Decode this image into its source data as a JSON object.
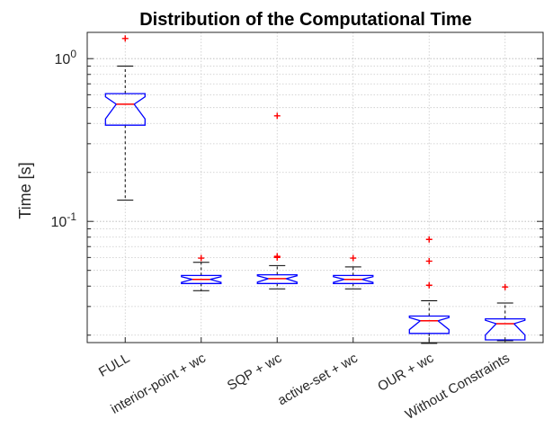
{
  "chart_data": {
    "type": "box",
    "title": "Distribution of the Computational Time",
    "xlabel": "",
    "ylabel": "Time [s]",
    "yscale": "log",
    "ylim": [
      0.018,
      1.45
    ],
    "ytick_labels": [
      "10^{-1}",
      "10^{0}"
    ],
    "grid": true,
    "notched": true,
    "box_color": "#0000ff",
    "median_color": "#ff0000",
    "outlier_color": "#ff0000",
    "whisker_color": "#000000",
    "categories": [
      "FULL",
      "interior-point + wc",
      "SQP + wc",
      "active-set + wc",
      "OUR + wc",
      "Without Constraints"
    ],
    "boxes": [
      {
        "label": "FULL",
        "whislo": 0.135,
        "q1": 0.39,
        "med": 0.525,
        "q3": 0.61,
        "whishi": 0.9,
        "fliers": [
          1.33
        ]
      },
      {
        "label": "interior-point + wc",
        "whislo": 0.0375,
        "q1": 0.0415,
        "med": 0.044,
        "q3": 0.0465,
        "whishi": 0.056,
        "fliers": [
          0.0595
        ]
      },
      {
        "label": "SQP + wc",
        "whislo": 0.0385,
        "q1": 0.0415,
        "med": 0.0445,
        "q3": 0.047,
        "whishi": 0.0535,
        "fliers": [
          0.445,
          0.061,
          0.0605,
          0.06
        ]
      },
      {
        "label": "active-set + wc",
        "whislo": 0.0385,
        "q1": 0.0415,
        "med": 0.044,
        "q3": 0.0465,
        "whishi": 0.0525,
        "fliers": [
          0.0595
        ]
      },
      {
        "label": "OUR + wc",
        "whislo": 0.0178,
        "q1": 0.0205,
        "med": 0.0245,
        "q3": 0.0262,
        "whishi": 0.0325,
        "fliers": [
          0.0775,
          0.057,
          0.0405
        ]
      },
      {
        "label": "Without Constraints",
        "whislo": 0.0185,
        "q1": 0.0187,
        "med": 0.0235,
        "q3": 0.0252,
        "whishi": 0.0315,
        "fliers": [
          0.0395
        ]
      }
    ]
  }
}
